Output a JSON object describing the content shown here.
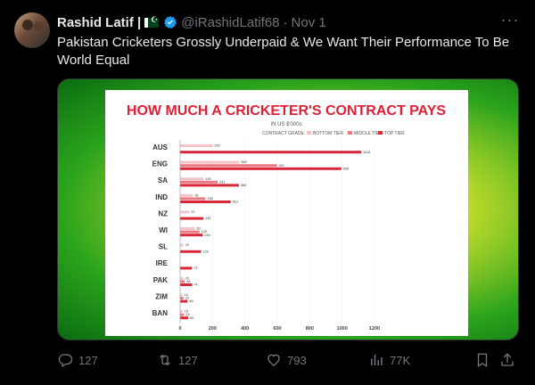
{
  "tweet": {
    "author_name": "Rashid Latif |",
    "handle": "@iRashidLatif68",
    "separator": "·",
    "date": "Nov 1",
    "more_label": "···",
    "text": "Pakistan Cricketers Grossly Underpaid & We Want Their Performance To Be World Equal"
  },
  "actions": {
    "replies": "127",
    "reposts": "127",
    "likes": "793",
    "views": "77K"
  },
  "colors": {
    "bottom_tier": "#f2c4c8",
    "middle_tier": "#e97a84",
    "top_tier": "#d9273a",
    "title": "#e02036"
  },
  "chart_data": {
    "type": "bar",
    "title": "HOW MUCH A CRICKETER'S CONTRACT PAYS",
    "subtitle": "IN US $'000s",
    "legend_label": "CONTRACT GRADE:",
    "categories": [
      "AUS",
      "ENG",
      "SA",
      "IND",
      "NZ",
      "WI",
      "SL",
      "IRE",
      "PAK",
      "ZIM",
      "BAN"
    ],
    "series": [
      {
        "name": "BOTTOM TIER",
        "values": [
          200,
          365,
          145,
          78,
          57,
          90,
          20,
          null,
          20,
          14,
          15
        ]
      },
      {
        "name": "MIDDLE TIER",
        "values": [
          null,
          597,
          231,
          156,
          null,
          120,
          null,
          null,
          28,
          20,
          24
        ]
      },
      {
        "name": "TOP TIER",
        "values": [
          1118,
          995,
          363,
          312,
          144,
          140,
          129,
          73,
          74,
          46,
          50
        ]
      }
    ],
    "xticks": [
      "0",
      "200",
      "400",
      "600",
      "800",
      "1000",
      "1200"
    ],
    "xlim": [
      0,
      1200
    ],
    "legend_position": "top"
  }
}
